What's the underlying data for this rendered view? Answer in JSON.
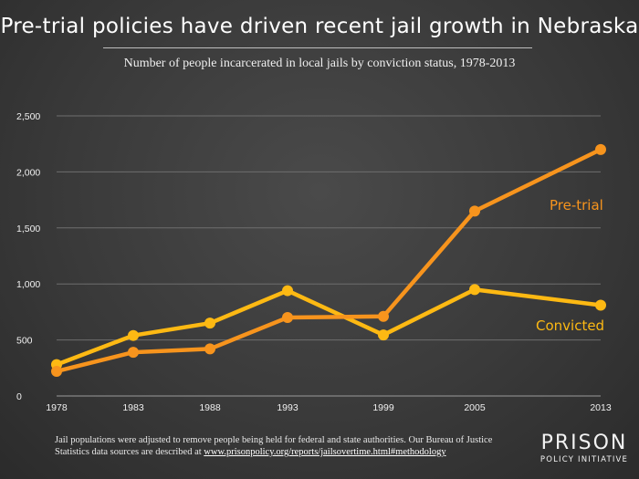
{
  "title": "Pre-trial policies have driven recent jail growth in Nebraska",
  "subtitle": "Number of people incarcerated in local jails by conviction status, 1978-2013",
  "chart_data": {
    "type": "line",
    "categories": [
      "1978",
      "1983",
      "1988",
      "1993",
      "1999",
      "2005",
      "2013"
    ],
    "yticks": [
      "0",
      "500",
      "1,000",
      "1,500",
      "2,000",
      "2,500"
    ],
    "ylim": [
      0,
      2500
    ],
    "grid": true,
    "series": [
      {
        "name": "Pre-trial",
        "color": "#f7941d",
        "values": [
          220,
          390,
          420,
          700,
          710,
          1650,
          2200
        ]
      },
      {
        "name": "Convicted",
        "color": "#fdb913",
        "values": [
          280,
          540,
          650,
          940,
          545,
          950,
          810
        ]
      }
    ]
  },
  "footer": {
    "line1": "Jail populations were adjusted to remove people being held for federal and state authorities. Our Bureau of Justice",
    "line2_prefix": "Statistics data sources are described at ",
    "link": "www.prisonpolicy.org/reports/jailsovertime.html#methodology"
  },
  "logo": {
    "big": "PRISON",
    "small": "POLICY INITIATIVE"
  }
}
